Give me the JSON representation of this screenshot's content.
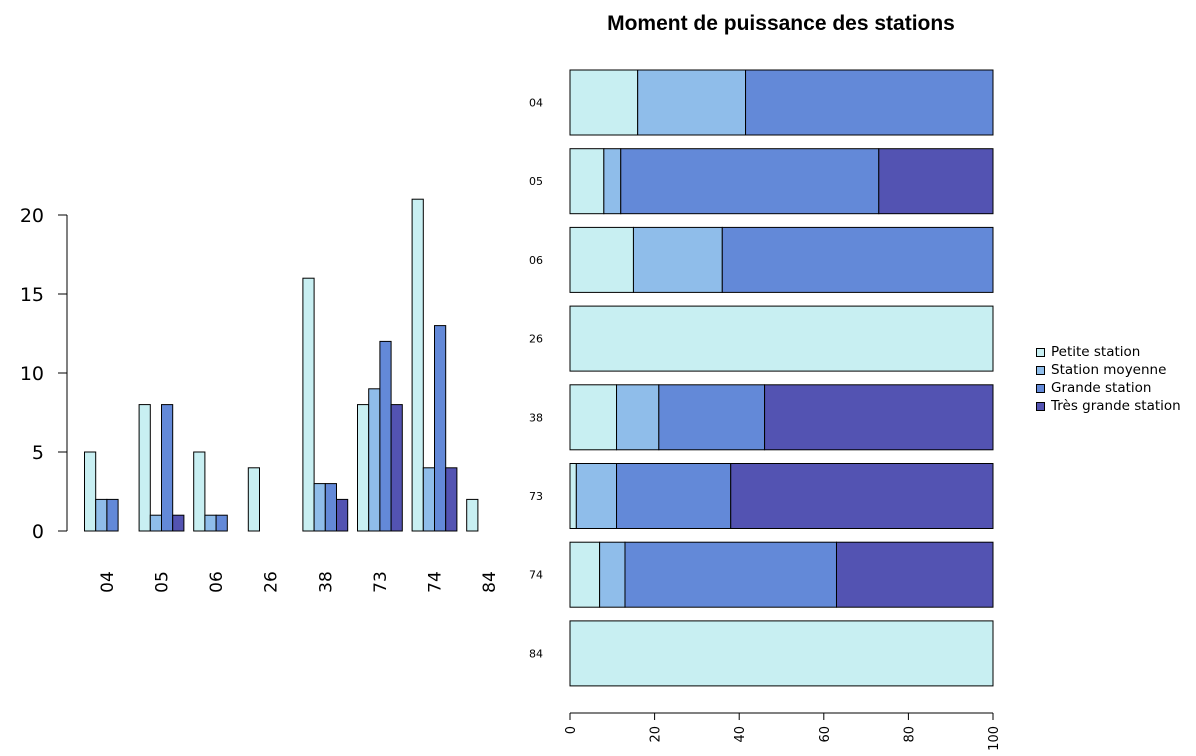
{
  "chart_data": [
    {
      "type": "bar",
      "categories": [
        "04",
        "05",
        "06",
        "26",
        "38",
        "73",
        "74",
        "84"
      ],
      "series": [
        {
          "name": "Petite station",
          "values": [
            5,
            8,
            5,
            4,
            16,
            8,
            21,
            2
          ]
        },
        {
          "name": "Station moyenne",
          "values": [
            2,
            1,
            1,
            0,
            3,
            9,
            4,
            0
          ]
        },
        {
          "name": "Grande station",
          "values": [
            2,
            8,
            1,
            0,
            3,
            12,
            13,
            0
          ]
        },
        {
          "name": "Très grande station",
          "values": [
            0,
            1,
            0,
            0,
            2,
            8,
            4,
            0
          ]
        }
      ],
      "yticks": [
        0,
        5,
        10,
        15,
        20
      ],
      "ylim": [
        0,
        22
      ],
      "grid": false
    },
    {
      "type": "bar",
      "orientation": "horizontal",
      "stacked": true,
      "title": "Moment de puissance des stations",
      "categories": [
        "04",
        "05",
        "06",
        "26",
        "38",
        "73",
        "74",
        "84"
      ],
      "series": [
        {
          "name": "Petite station",
          "values": [
            16,
            8,
            15,
            100,
            11,
            1.5,
            7,
            100
          ]
        },
        {
          "name": "Station moyenne",
          "values": [
            25.5,
            4,
            21,
            0,
            10,
            9.5,
            6,
            0
          ]
        },
        {
          "name": "Grande station",
          "values": [
            58.5,
            61,
            64,
            0,
            25,
            27,
            50,
            0
          ]
        },
        {
          "name": "Très grande station",
          "values": [
            0,
            27,
            0,
            0,
            54,
            62,
            37,
            0
          ]
        }
      ],
      "xticks": [
        0,
        20,
        40,
        60,
        80,
        100
      ],
      "xlim": [
        0,
        100
      ],
      "grid": false
    }
  ],
  "legend": {
    "placement": "right",
    "items": [
      {
        "label": "Petite station",
        "color": "#c8eff2"
      },
      {
        "label": "Station moyenne",
        "color": "#8fbdea"
      },
      {
        "label": "Grande station",
        "color": "#6389d8"
      },
      {
        "label": "Très grande station",
        "color": "#5353b2"
      }
    ]
  },
  "colors": [
    "#c8eff2",
    "#8fbdea",
    "#6389d8",
    "#5353b2"
  ]
}
